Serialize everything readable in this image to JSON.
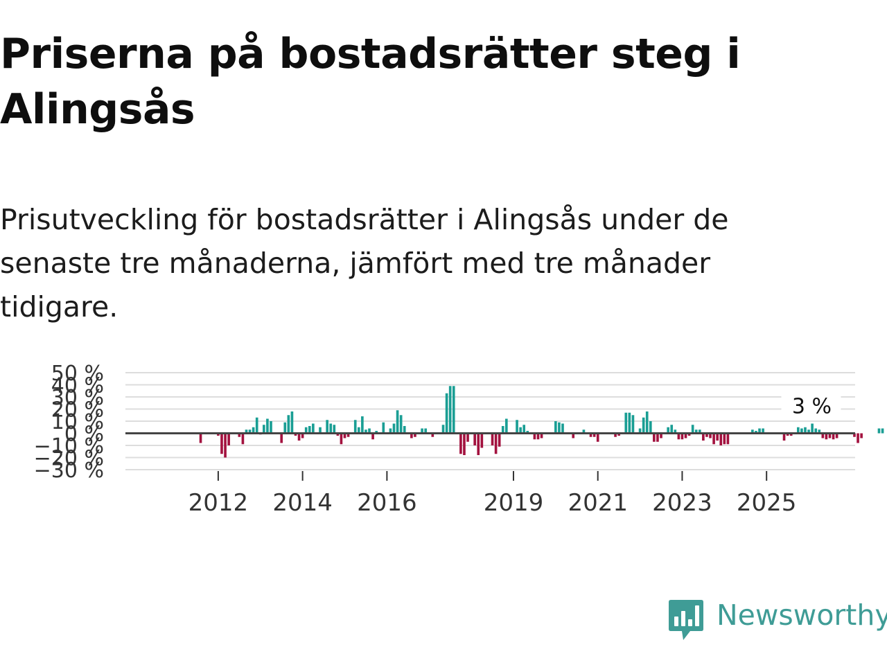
{
  "title": "Priserna på bostadsrätter steg i Alingsås",
  "subtitle": "Prisutveckling för bostadsrätter i Alingsås under de senaste tre månaderna, jämfört med tre månader tidigare.",
  "brand": {
    "name": "Newsworthy",
    "color": "#3f9c96",
    "icon": "newsworthy-logo-icon"
  },
  "colors": {
    "positive": "#1a9e94",
    "negative": "#a3123f",
    "grid": "#dddddd",
    "zero": "#444444"
  },
  "chart_data": {
    "type": "bar",
    "title": "",
    "xlabel": "",
    "ylabel": "",
    "x_start": 2011.0,
    "x_step": 0.0833333,
    "xlim": [
      2009.8,
      2027.1
    ],
    "ylim": [
      -30,
      50
    ],
    "yticks": [
      50,
      40,
      30,
      20,
      10,
      0,
      -10,
      -20,
      -30
    ],
    "ytick_labels": [
      "50 %",
      "40 %",
      "30 %",
      "20 %",
      "10 %",
      "0 %",
      "−10 %",
      "−20 %",
      "−30 %"
    ],
    "xticks": [
      2012,
      2014,
      2016,
      2019,
      2021,
      2023,
      2025
    ],
    "xtick_labels": [
      "2012",
      "2014",
      "2016",
      "2019",
      "2021",
      "2023",
      "2025"
    ],
    "annotation": {
      "text": "3 %",
      "x": 2026.5,
      "value": 3
    },
    "series": [
      {
        "name": "Prisutveckling",
        "values": [
          0,
          0,
          0,
          0,
          0,
          0,
          0,
          -8,
          0,
          0,
          0,
          0,
          -2,
          -17,
          -20,
          -10,
          0,
          0,
          -3,
          -9,
          3,
          3,
          5,
          13,
          -1,
          7,
          12,
          10,
          0,
          0,
          -8,
          9,
          15,
          18,
          -2,
          -6,
          -4,
          5,
          6,
          8,
          0,
          5,
          0,
          11,
          8,
          7,
          -2,
          -9,
          -4,
          -3,
          0,
          11,
          5,
          14,
          3,
          4,
          -5,
          2,
          0,
          9,
          0,
          4,
          8,
          19,
          15,
          6,
          0,
          -4,
          -3,
          0,
          4,
          4,
          0,
          -3,
          0,
          0,
          7,
          33,
          39,
          39,
          0,
          -17,
          -18,
          -7,
          0,
          -10,
          -18,
          -12,
          0,
          0,
          -10,
          -17,
          -11,
          6,
          12,
          0,
          0,
          11,
          5,
          7,
          2,
          0,
          -5,
          -5,
          -4,
          0,
          0,
          0,
          10,
          9,
          8,
          0,
          0,
          -4,
          0,
          0,
          3,
          0,
          -3,
          -3,
          -7,
          0,
          0,
          0,
          0,
          -3,
          -2,
          0,
          17,
          17,
          15,
          0,
          4,
          13,
          18,
          10,
          -7,
          -7,
          -4,
          0,
          5,
          7,
          3,
          -5,
          -5,
          -4,
          -2,
          7,
          3,
          3,
          -6,
          -3,
          -4,
          -9,
          -6,
          -10,
          -9,
          -9,
          0,
          0,
          0,
          0,
          0,
          0,
          3,
          2,
          4,
          4,
          0,
          0,
          0,
          0,
          0,
          -6,
          -2,
          -2,
          0,
          5,
          4,
          5,
          3,
          8,
          4,
          3,
          -4,
          -5,
          -4,
          -5,
          -4,
          0,
          0,
          0,
          0,
          -3,
          -8,
          -4,
          0,
          0,
          0,
          0,
          4,
          4,
          0,
          0,
          -5,
          0,
          2,
          3
        ]
      }
    ]
  }
}
